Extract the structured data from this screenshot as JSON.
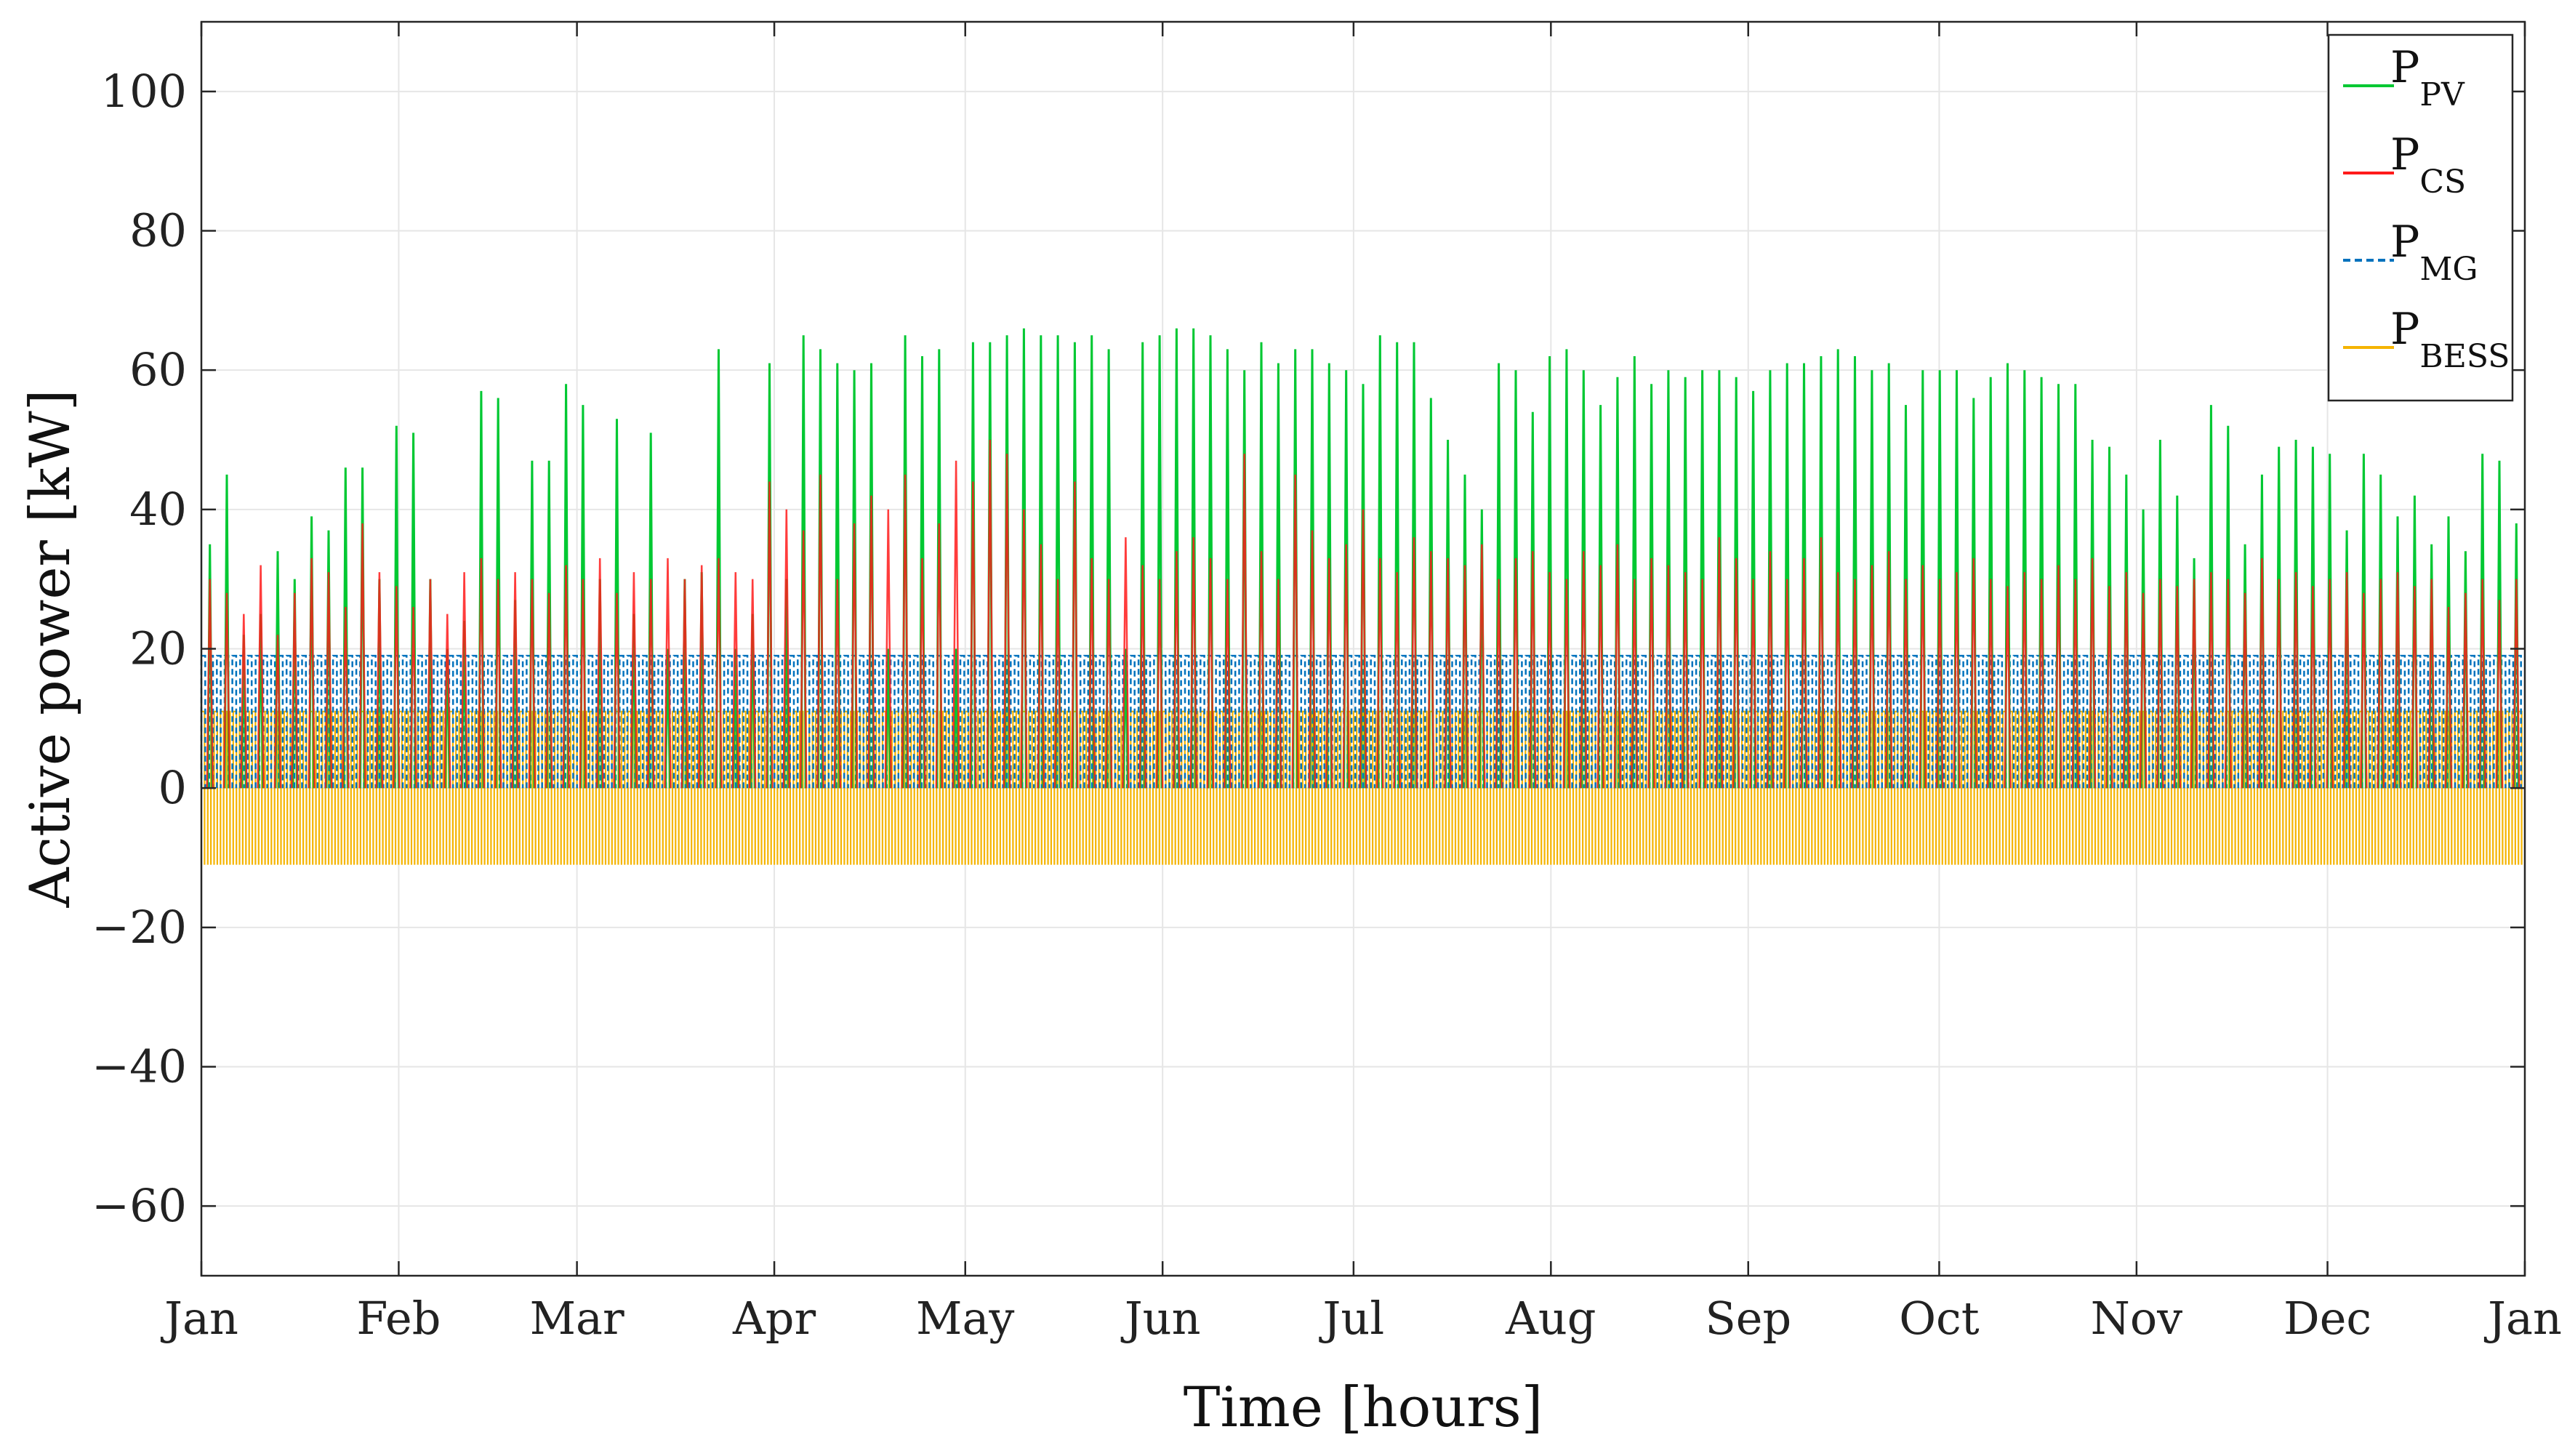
{
  "chart_data": {
    "type": "line",
    "title": "",
    "xlabel": "Time [hours]",
    "ylabel": "Active power [kW]",
    "xlim": [
      0,
      8760
    ],
    "ylim": [
      -70,
      110
    ],
    "grid": true,
    "legend_position": "top-right",
    "x_ticks": [
      {
        "label": "Jan",
        "hour": 0
      },
      {
        "label": "Feb",
        "hour": 744
      },
      {
        "label": "Mar",
        "hour": 1416
      },
      {
        "label": "Apr",
        "hour": 2160
      },
      {
        "label": "May",
        "hour": 2880
      },
      {
        "label": "Jun",
        "hour": 3624
      },
      {
        "label": "Jul",
        "hour": 4344
      },
      {
        "label": "Aug",
        "hour": 5088
      },
      {
        "label": "Sep",
        "hour": 5832
      },
      {
        "label": "Oct",
        "hour": 6552
      },
      {
        "label": "Nov",
        "hour": 7296
      },
      {
        "label": "Dec",
        "hour": 8016
      },
      {
        "label": "Jan",
        "hour": 8760
      }
    ],
    "y_ticks": [
      {
        "value": 100,
        "label": "100"
      },
      {
        "value": 80,
        "label": "80"
      },
      {
        "value": 60,
        "label": "60"
      },
      {
        "value": 40,
        "label": "40"
      },
      {
        "value": 20,
        "label": "20"
      },
      {
        "value": 0,
        "label": "0"
      },
      {
        "value": -20,
        "label": "−20"
      },
      {
        "value": -40,
        "label": "−40"
      },
      {
        "value": -60,
        "label": "−60"
      }
    ],
    "series": [
      {
        "name": "P_PV",
        "label_main": "P",
        "label_sub": "PV",
        "color": "#00c832",
        "style": "solid",
        "description": "daily solar peaks (kW) sampled roughly every 3 days, Jan to Dec",
        "daily_peaks": [
          35,
          45,
          22,
          25,
          34,
          30,
          39,
          37,
          46,
          46,
          30,
          52,
          51,
          30,
          20,
          24,
          57,
          56,
          27,
          47,
          47,
          58,
          55,
          30,
          53,
          25,
          51,
          20,
          30,
          31,
          63,
          20,
          25,
          61,
          30,
          65,
          63,
          61,
          60,
          61,
          20,
          65,
          62,
          63,
          20,
          64,
          64,
          65,
          66,
          65,
          65,
          64,
          65,
          63,
          20,
          64,
          65,
          66,
          66,
          65,
          63,
          60,
          64,
          61,
          63,
          63,
          61,
          60,
          58,
          65,
          64,
          64,
          56,
          50,
          45,
          40,
          61,
          60,
          54,
          62,
          63,
          60,
          55,
          59,
          62,
          58,
          60,
          59,
          60,
          60,
          59,
          57,
          60,
          61,
          61,
          62,
          63,
          62,
          60,
          61,
          55,
          60,
          60,
          60,
          56,
          59,
          61,
          60,
          59,
          58,
          58,
          50,
          49,
          45,
          40,
          50,
          42,
          33,
          55,
          52,
          35,
          45,
          49,
          50,
          49,
          48,
          37,
          48,
          45,
          39,
          42,
          35,
          39,
          34,
          48,
          47,
          38
        ]
      },
      {
        "name": "P_CS",
        "label_main": "P",
        "label_sub": "CS",
        "color": "#ff1a1a",
        "style": "solid",
        "description": "charging-station load peaks (kW), Jan to Dec",
        "daily_peaks": [
          30,
          28,
          25,
          32,
          22,
          28,
          33,
          31,
          26,
          38,
          31,
          29,
          26,
          30,
          25,
          31,
          33,
          30,
          31,
          30,
          28,
          32,
          30,
          33,
          28,
          31,
          30,
          33,
          30,
          32,
          33,
          31,
          30,
          44,
          40,
          37,
          45,
          30,
          38,
          42,
          40,
          45,
          33,
          38,
          47,
          44,
          50,
          48,
          40,
          35,
          30,
          44,
          33,
          30,
          36,
          32,
          30,
          34,
          36,
          33,
          30,
          48,
          34,
          30,
          45,
          37,
          33,
          35,
          40,
          33,
          31,
          36,
          34,
          33,
          32,
          35,
          30,
          33,
          34,
          31,
          30,
          34,
          32,
          35,
          30,
          33,
          32,
          31,
          30,
          36,
          33,
          30,
          34,
          30,
          33,
          36,
          31,
          30,
          32,
          34,
          30,
          32,
          30,
          31,
          33,
          30,
          29,
          31,
          30,
          32,
          30,
          33,
          29,
          31,
          28,
          30,
          29,
          30,
          31,
          30,
          28,
          33,
          30,
          31,
          29,
          30,
          31,
          28,
          30,
          31,
          29,
          30,
          26,
          28,
          30,
          27,
          30
        ]
      },
      {
        "name": "P_MG",
        "label_main": "P",
        "label_sub": "MG",
        "color": "#0072bd",
        "style": "dashed",
        "description": "grid import/export band, oscillating mostly between 0 and 19 kW",
        "upper_level": 19,
        "lower_level": 0
      },
      {
        "name": "P_BESS",
        "label_main": "P",
        "label_sub": "BESS",
        "color": "#f5b400",
        "style": "solid",
        "description": "battery power, charging up to 11 kW and discharging down to -11 kW",
        "upper_level": 11,
        "lower_level": -11
      }
    ]
  }
}
